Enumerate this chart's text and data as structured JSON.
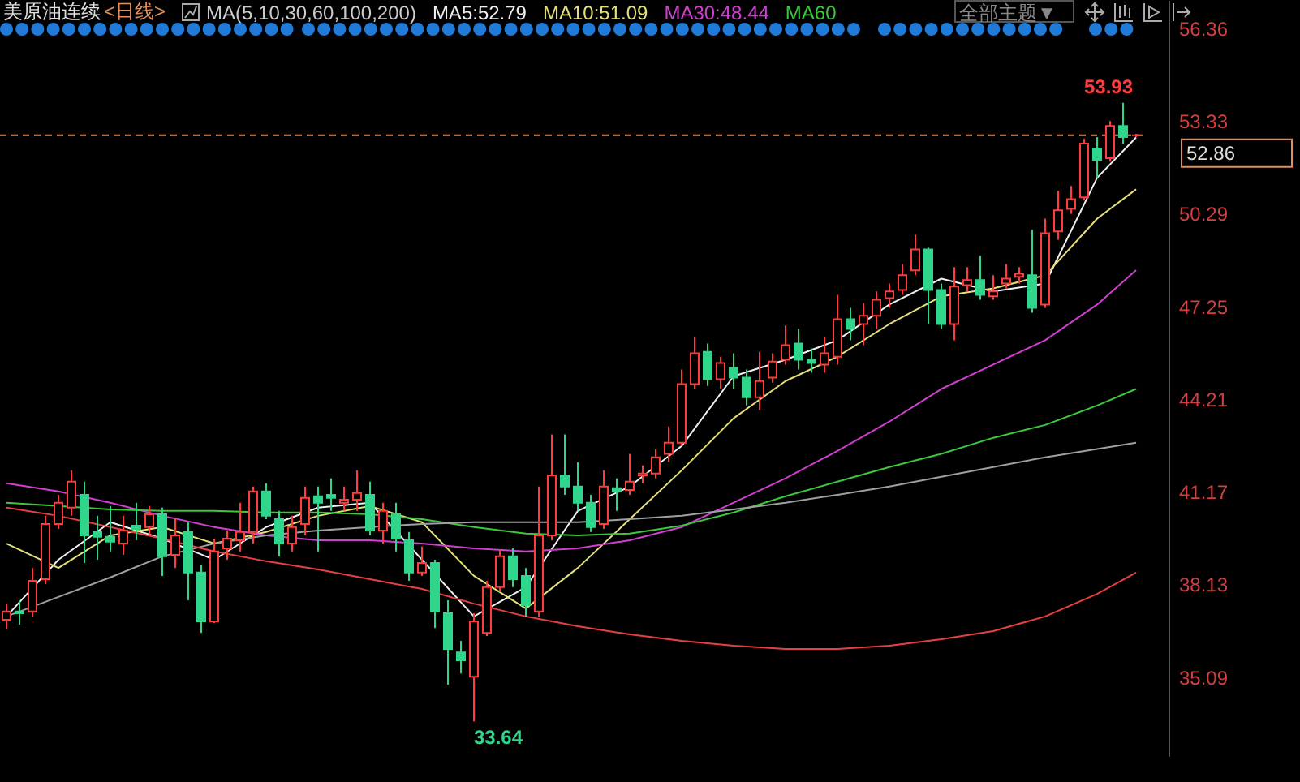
{
  "chart_data": {
    "type": "candlestick",
    "title": "美原油连续",
    "subtitle": "<日线>",
    "annotations": [
      "MA(5,10,30,60,100,200)",
      "全部主题▼",
      "53.93",
      "33.64"
    ],
    "categories": [
      null,
      null,
      null,
      null,
      null,
      null,
      null,
      null,
      null,
      null,
      null,
      null,
      null,
      null,
      null,
      null,
      null,
      null,
      null,
      null,
      null,
      null,
      null,
      null,
      null,
      null,
      null,
      null,
      null,
      null,
      null,
      null,
      null,
      null,
      null,
      null,
      null,
      null,
      null,
      null,
      null,
      null,
      null,
      null,
      null,
      null,
      null,
      null,
      null,
      null,
      null,
      null,
      null,
      null,
      null,
      null,
      null,
      null,
      null,
      null,
      null,
      null,
      null,
      null,
      null,
      null,
      null,
      null,
      null,
      null,
      null,
      null,
      null,
      null,
      null,
      null,
      null,
      null,
      null,
      null,
      null,
      null,
      null,
      null,
      null,
      null,
      null,
      null
    ],
    "ohlc": [
      [
        36.97,
        37.5,
        36.65,
        37.24
      ],
      [
        37.24,
        37.61,
        36.81,
        37.18
      ],
      [
        37.24,
        38.67,
        37.08,
        38.25
      ],
      [
        38.3,
        40.38,
        38.14,
        40.11
      ],
      [
        40.11,
        41.07,
        39.95,
        40.81
      ],
      [
        40.65,
        41.87,
        40.38,
        41.5
      ],
      [
        41.07,
        41.5,
        38.83,
        39.74
      ],
      [
        39.85,
        40.38,
        38.94,
        39.69
      ],
      [
        39.69,
        40.7,
        39.21,
        39.53
      ],
      [
        39.47,
        40.38,
        39.1,
        39.9
      ],
      [
        40.06,
        40.81,
        39.58,
        39.95
      ],
      [
        40.01,
        40.7,
        39.74,
        40.43
      ],
      [
        40.43,
        40.65,
        38.41,
        39.05
      ],
      [
        39.1,
        40.27,
        38.67,
        39.74
      ],
      [
        39.85,
        40.17,
        37.61,
        38.52
      ],
      [
        38.52,
        38.78,
        36.54,
        36.92
      ],
      [
        36.92,
        39.63,
        36.86,
        39.21
      ],
      [
        39.31,
        39.9,
        38.94,
        39.63
      ],
      [
        39.58,
        40.81,
        39.21,
        39.85
      ],
      [
        39.85,
        41.34,
        39.47,
        41.18
      ],
      [
        41.18,
        41.45,
        40.27,
        40.38
      ],
      [
        40.27,
        40.54,
        39.05,
        39.47
      ],
      [
        39.47,
        40.38,
        39.21,
        40.01
      ],
      [
        40.11,
        41.34,
        39.74,
        40.97
      ],
      [
        41.02,
        41.34,
        39.21,
        40.81
      ],
      [
        41.07,
        41.61,
        40.54,
        40.97
      ],
      [
        40.81,
        41.34,
        40.54,
        40.91
      ],
      [
        40.91,
        41.87,
        40.54,
        41.13
      ],
      [
        41.07,
        41.5,
        39.74,
        39.9
      ],
      [
        39.9,
        40.81,
        39.47,
        40.54
      ],
      [
        40.43,
        40.81,
        39.21,
        39.63
      ],
      [
        39.58,
        39.85,
        38.25,
        38.52
      ],
      [
        38.52,
        39.37,
        38.41,
        38.83
      ],
      [
        38.83,
        38.94,
        36.7,
        37.24
      ],
      [
        37.18,
        37.61,
        34.84,
        36.01
      ],
      [
        35.9,
        36.28,
        35.21,
        35.64
      ],
      [
        35.1,
        37.18,
        33.64,
        36.92
      ],
      [
        36.54,
        38.25,
        36.44,
        38.04
      ],
      [
        38.04,
        39.26,
        37.88,
        39.05
      ],
      [
        39.05,
        39.31,
        38.04,
        38.3
      ],
      [
        38.41,
        38.67,
        37.08,
        37.45
      ],
      [
        37.24,
        41.34,
        37.08,
        39.74
      ],
      [
        39.74,
        43.05,
        39.58,
        41.71
      ],
      [
        41.71,
        43.05,
        41.07,
        41.34
      ],
      [
        41.34,
        42.14,
        40.54,
        40.81
      ],
      [
        40.81,
        41.07,
        39.85,
        40.01
      ],
      [
        40.11,
        41.87,
        39.95,
        41.34
      ],
      [
        41.29,
        41.61,
        40.54,
        41.18
      ],
      [
        41.23,
        42.41,
        41.07,
        41.5
      ],
      [
        41.71,
        42.03,
        41.45,
        41.77
      ],
      [
        41.77,
        42.57,
        41.61,
        42.3
      ],
      [
        42.41,
        43.31,
        42.14,
        42.78
      ],
      [
        42.78,
        45.18,
        42.67,
        44.7
      ],
      [
        44.7,
        46.24,
        44.54,
        45.71
      ],
      [
        45.76,
        46.03,
        44.64,
        44.86
      ],
      [
        44.86,
        45.6,
        44.54,
        45.39
      ],
      [
        45.23,
        45.71,
        44.54,
        44.91
      ],
      [
        44.91,
        45.18,
        44.0,
        44.27
      ],
      [
        44.27,
        45.76,
        43.85,
        44.8
      ],
      [
        44.91,
        45.71,
        44.75,
        45.44
      ],
      [
        45.5,
        46.62,
        45.34,
        45.98
      ],
      [
        46.03,
        46.51,
        45.18,
        45.5
      ],
      [
        45.5,
        45.87,
        45.07,
        45.39
      ],
      [
        45.34,
        46.24,
        45.07,
        45.71
      ],
      [
        45.6,
        47.63,
        45.34,
        46.83
      ],
      [
        46.83,
        47.2,
        46.14,
        46.51
      ],
      [
        46.67,
        47.36,
        45.98,
        46.94
      ],
      [
        46.94,
        47.74,
        46.51,
        47.47
      ],
      [
        47.52,
        48.0,
        47.2,
        47.74
      ],
      [
        47.79,
        48.64,
        47.63,
        48.27
      ],
      [
        48.43,
        49.6,
        48.27,
        49.12
      ],
      [
        49.12,
        49.18,
        46.67,
        47.79
      ],
      [
        47.79,
        48.0,
        46.51,
        46.67
      ],
      [
        46.67,
        48.54,
        46.14,
        47.9
      ],
      [
        47.95,
        48.54,
        47.74,
        48.11
      ],
      [
        48.11,
        48.91,
        47.47,
        47.63
      ],
      [
        47.58,
        48.27,
        47.47,
        47.74
      ],
      [
        48.0,
        48.64,
        47.84,
        48.16
      ],
      [
        48.22,
        48.54,
        48.0,
        48.32
      ],
      [
        48.27,
        49.76,
        47.04,
        47.2
      ],
      [
        47.31,
        50.13,
        47.2,
        49.65
      ],
      [
        49.71,
        51.04,
        49.44,
        50.4
      ],
      [
        50.45,
        51.2,
        50.29,
        50.77
      ],
      [
        50.83,
        52.75,
        50.72,
        52.59
      ],
      [
        52.43,
        52.8,
        51.47,
        52.05
      ],
      [
        52.11,
        53.33,
        52.0,
        53.17
      ],
      [
        53.17,
        53.93,
        52.59,
        52.8
      ],
      [
        52.86,
        52.91,
        52.8,
        52.86
      ]
    ],
    "series": [
      {
        "name": "MA5:52.79",
        "type": "line",
        "color": "#f0f0f0",
        "values": [
          37.08,
          null,
          null,
          null,
          38.94,
          null,
          null,
          null,
          40.17,
          null,
          null,
          null,
          39.63,
          null,
          null,
          null,
          38.94,
          null,
          null,
          null,
          40.01,
          null,
          null,
          null,
          40.65,
          null,
          null,
          null,
          40.81,
          null,
          null,
          null,
          38.94,
          null,
          null,
          null,
          37.08,
          null,
          null,
          null,
          38.04,
          null,
          null,
          null,
          40.54,
          null,
          null,
          null,
          41.34,
          null,
          null,
          null,
          42.67,
          null,
          null,
          null,
          44.96,
          null,
          null,
          null,
          45.5,
          null,
          null,
          null,
          46.14,
          null,
          null,
          null,
          47.31,
          null,
          null,
          null,
          48.16,
          null,
          null,
          null,
          47.74,
          null,
          null,
          null,
          48.0,
          null,
          null,
          null,
          51.47,
          null,
          null,
          52.79
        ]
      },
      {
        "name": "MA10:51.09",
        "type": "line",
        "color": "#e6e07a",
        "values": [
          39.47,
          null,
          null,
          null,
          38.67,
          null,
          null,
          null,
          39.74,
          null,
          null,
          null,
          40.01,
          null,
          null,
          null,
          39.47,
          null,
          null,
          null,
          39.85,
          null,
          null,
          null,
          40.38,
          null,
          null,
          null,
          40.7,
          null,
          null,
          null,
          40.17,
          null,
          null,
          null,
          38.41,
          null,
          null,
          null,
          37.34,
          null,
          null,
          null,
          38.67,
          null,
          null,
          null,
          40.27,
          null,
          null,
          null,
          41.87,
          null,
          null,
          null,
          43.58,
          null,
          null,
          null,
          44.8,
          null,
          null,
          null,
          45.6,
          null,
          null,
          null,
          46.67,
          null,
          null,
          null,
          47.58,
          null,
          null,
          null,
          47.84,
          null,
          null,
          null,
          48.27,
          null,
          null,
          null,
          50.13,
          null,
          null,
          51.09
        ]
      },
      {
        "name": "MA30:48.44",
        "type": "line",
        "color": "#d040d0",
        "values": [
          41.45,
          null,
          null,
          null,
          41.18,
          null,
          null,
          null,
          40.81,
          null,
          null,
          null,
          40.38,
          null,
          null,
          null,
          40.01,
          null,
          null,
          null,
          39.74,
          null,
          null,
          null,
          39.58,
          null,
          null,
          null,
          39.58,
          null,
          null,
          null,
          39.47,
          null,
          null,
          null,
          39.31,
          null,
          null,
          null,
          39.21,
          null,
          null,
          null,
          39.31,
          null,
          null,
          null,
          39.58,
          null,
          null,
          null,
          40.01,
          null,
          null,
          null,
          40.81,
          null,
          null,
          null,
          41.61,
          null,
          null,
          null,
          42.51,
          null,
          null,
          null,
          43.47,
          null,
          null,
          null,
          44.54,
          null,
          null,
          null,
          45.34,
          null,
          null,
          null,
          46.14,
          null,
          null,
          null,
          47.31,
          null,
          null,
          48.44
        ]
      },
      {
        "name": "MA60",
        "type": "line",
        "color": "#3cc83c",
        "values": [
          40.81,
          null,
          null,
          null,
          40.7,
          null,
          null,
          null,
          40.59,
          null,
          null,
          null,
          40.54,
          null,
          null,
          null,
          40.54,
          null,
          null,
          null,
          40.49,
          null,
          null,
          null,
          40.49,
          null,
          null,
          null,
          40.43,
          null,
          null,
          null,
          40.27,
          null,
          null,
          null,
          40.01,
          null,
          null,
          null,
          39.8,
          null,
          null,
          null,
          39.74,
          null,
          null,
          null,
          39.8,
          null,
          null,
          null,
          40.06,
          null,
          null,
          null,
          40.49,
          null,
          null,
          null,
          41.02,
          null,
          null,
          null,
          41.5,
          null,
          null,
          null,
          41.98,
          null,
          null,
          null,
          42.41,
          null,
          null,
          null,
          42.94,
          null,
          null,
          null,
          43.36,
          null,
          null,
          null,
          44.0,
          null,
          null,
          44.54
        ]
      },
      {
        "type": "line",
        "color": "#a0a0a0",
        "values": [
          37.08,
          null,
          null,
          null,
          37.72,
          null,
          null,
          null,
          38.36,
          null,
          null,
          null,
          39.05,
          null,
          null,
          null,
          39.47,
          null,
          null,
          null,
          39.74,
          null,
          null,
          null,
          39.9,
          null,
          null,
          null,
          40.01,
          null,
          null,
          null,
          40.11,
          null,
          null,
          null,
          40.17,
          null,
          null,
          null,
          40.17,
          null,
          null,
          null,
          40.17,
          null,
          null,
          null,
          40.27,
          null,
          null,
          null,
          40.38,
          null,
          null,
          null,
          40.59,
          null,
          null,
          null,
          40.81,
          null,
          null,
          null,
          41.07,
          null,
          null,
          null,
          41.34,
          null,
          null,
          null,
          41.66,
          null,
          null,
          null,
          41.98,
          null,
          null,
          null,
          42.3,
          null,
          null,
          null,
          42.57,
          null,
          null,
          42.78
        ]
      },
      {
        "type": "line",
        "color": "#e84040",
        "values": [
          40.65,
          null,
          null,
          null,
          40.38,
          null,
          null,
          null,
          40.01,
          null,
          null,
          null,
          39.63,
          null,
          null,
          null,
          39.21,
          null,
          null,
          null,
          38.89,
          null,
          null,
          null,
          38.62,
          null,
          null,
          null,
          38.3,
          null,
          null,
          null,
          37.98,
          null,
          null,
          null,
          37.5,
          null,
          null,
          null,
          37.08,
          null,
          null,
          null,
          36.76,
          null,
          null,
          null,
          36.49,
          null,
          null,
          null,
          36.28,
          null,
          null,
          null,
          36.12,
          null,
          null,
          null,
          36.01,
          null,
          null,
          null,
          36.01,
          null,
          null,
          null,
          36.12,
          null,
          null,
          null,
          36.33,
          null,
          null,
          null,
          36.6,
          null,
          null,
          null,
          37.08,
          null,
          null,
          null,
          37.82,
          null,
          null,
          38.52
        ]
      }
    ],
    "ylim": [
      32.5,
      57.3
    ],
    "yticks": [
      35.09,
      38.13,
      41.17,
      44.21,
      47.25,
      50.29,
      53.33,
      56.36
    ],
    "ref_lines": [
      {
        "axis": "y",
        "value": 52.86,
        "label": "52.86",
        "color": "#e0905a",
        "line_style": "dashed"
      }
    ],
    "grid": false,
    "legend": "top",
    "tick_labels": "y",
    "marker": "none"
  }
}
